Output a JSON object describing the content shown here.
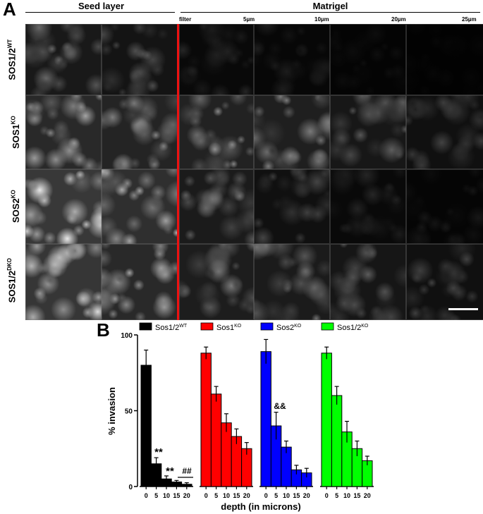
{
  "panel_a": {
    "label": "A",
    "headers": {
      "seed_layer": "Seed layer",
      "matrigel": "Matrigel"
    },
    "depth_labels": [
      "filter",
      "5µm",
      "10µm",
      "20µm",
      "25µm"
    ],
    "rows": [
      {
        "base": "SOS1/2",
        "sup": "WT"
      },
      {
        "base": "SOS1",
        "sup": "KO"
      },
      {
        "base": "SOS2",
        "sup": "KO"
      },
      {
        "base": "SOS1/2",
        "sup": "DKO"
      }
    ]
  },
  "panel_b": {
    "label": "B",
    "legend": [
      {
        "base": "Sos1/2",
        "sup": "WT",
        "color": "#000000"
      },
      {
        "base": "Sos1",
        "sup": "KO",
        "color": "#ff0000"
      },
      {
        "base": "Sos2",
        "sup": "KO",
        "color": "#0000ff"
      },
      {
        "base": "Sos1/2",
        "sup": "KO",
        "color": "#00ff00"
      }
    ],
    "annotations": [
      "**",
      "**",
      "##",
      "&&"
    ]
  },
  "chart_data": {
    "type": "bar",
    "xlabel": "depth (in microns)",
    "ylabel": "% invasion",
    "ylim": [
      0,
      100
    ],
    "yticks": [
      0,
      50,
      100
    ],
    "categories": [
      "0",
      "5",
      "10",
      "15",
      "20"
    ],
    "series": [
      {
        "name": "Sos1/2 WT",
        "color": "#000000",
        "values": [
          80,
          15,
          5,
          3,
          1.5
        ],
        "errors": [
          10,
          4,
          2,
          1,
          1
        ]
      },
      {
        "name": "Sos1 KO",
        "color": "#ff0000",
        "values": [
          88,
          61,
          42,
          33,
          25
        ],
        "errors": [
          4,
          5,
          6,
          5,
          4
        ]
      },
      {
        "name": "Sos2 KO",
        "color": "#0000ff",
        "values": [
          89,
          40,
          26,
          11,
          9
        ],
        "errors": [
          8,
          9,
          4,
          3,
          3
        ]
      },
      {
        "name": "Sos1/2 KO",
        "color": "#00ff00",
        "values": [
          88,
          60,
          36,
          25,
          17
        ],
        "errors": [
          4,
          6,
          7,
          5,
          3
        ]
      }
    ]
  }
}
